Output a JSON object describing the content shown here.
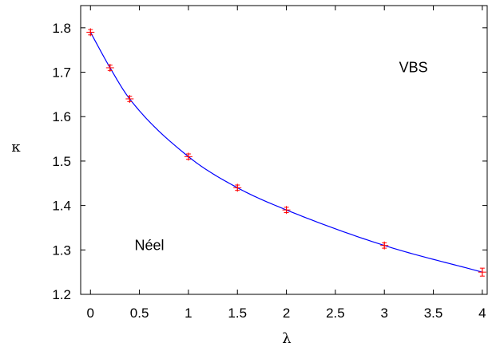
{
  "chart_data": {
    "type": "scatter",
    "xlabel": "λ",
    "ylabel": "κ",
    "xlim": [
      -0.1,
      4.05
    ],
    "ylim": [
      1.2,
      1.85
    ],
    "x_ticks": [
      "0",
      "0.5",
      "1",
      "1.5",
      "2",
      "2.5",
      "3",
      "3.5",
      "4"
    ],
    "y_ticks": [
      "1.2",
      "1.3",
      "1.4",
      "1.5",
      "1.6",
      "1.7",
      "1.8"
    ],
    "grid": false,
    "series": [
      {
        "style": "points with error bars",
        "color": "#ff0000",
        "x": [
          0,
          0.2,
          0.4,
          1.0,
          1.5,
          2.0,
          3.0,
          4.0
        ],
        "y": [
          1.79,
          1.71,
          1.64,
          1.51,
          1.44,
          1.39,
          1.31,
          1.25
        ],
        "err": [
          0.006,
          0.006,
          0.006,
          0.006,
          0.006,
          0.006,
          0.006,
          0.009
        ]
      },
      {
        "style": "fit curve",
        "color": "#0000ff"
      }
    ],
    "annotations": [
      {
        "text": "VBS",
        "x": 3.15,
        "y": 1.7
      },
      {
        "text": "Néel",
        "x": 0.45,
        "y": 1.3
      }
    ]
  }
}
